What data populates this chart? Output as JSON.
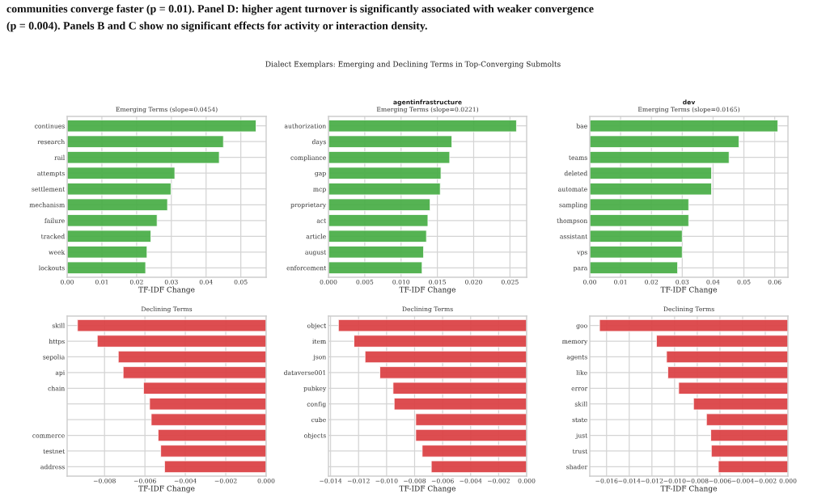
{
  "chart_data": [
    {
      "type": "bar",
      "orientation": "horizontal",
      "subtitle": "Emerging Terms (slope=0.0454)",
      "xlabel": "TF-IDF Change",
      "annotations": [
        "communities converge faster (p = 0.01). Panel D: higher agent turnover is significantly associated with weaker convergence",
        "(p = 0.004). Panels B and C show no significant effects for activity or interaction density.",
        "Dialect Exemplars: Emerging and Declining Terms in Top-Converging Submolts"
      ],
      "categories": [
        "continues",
        "research",
        "rail",
        "attempts",
        "settlement",
        "mechanism",
        "failure",
        "tracked",
        "week",
        "lockouts"
      ],
      "values": [
        0.0544,
        0.045,
        0.0438,
        0.031,
        0.0299,
        0.0289,
        0.0259,
        0.0241,
        0.023,
        0.0226
      ],
      "color": "#4caf4a",
      "xlim": [
        0,
        0.0573
      ],
      "xticks": [
        {
          "value": 0,
          "label": "0.00"
        },
        0.01,
        0.02,
        0.03,
        0.04,
        0.05
      ],
      "grid": true
    },
    {
      "type": "bar",
      "orientation": "horizontal",
      "title": "agentinfrastructure",
      "subtitle": "Emerging Terms (slope=0.0221)",
      "xlabel": "TF-IDF Change",
      "categories": [
        "authorization",
        "days",
        "compliance",
        "gap",
        "mcp",
        "proprietary",
        "act",
        "article",
        "august",
        "enforcement"
      ],
      "values": [
        0.0259,
        0.017,
        0.0167,
        0.0155,
        0.0154,
        0.014,
        0.0137,
        0.0135,
        0.0131,
        0.0129
      ],
      "color": "#4caf4a",
      "xlim": [
        0,
        0.0273
      ],
      "xticks": [
        {
          "value": 0,
          "label": "0.000"
        },
        0.005,
        {
          "value": 0.01,
          "label": "0.010"
        },
        0.015,
        {
          "value": 0.02,
          "label": "0.020"
        },
        0.025
      ],
      "grid": true
    },
    {
      "type": "bar",
      "orientation": "horizontal",
      "title": "dev",
      "subtitle": "Emerging Terms (slope=0.0165)",
      "xlabel": "TF-IDF Change",
      "categories": [
        "bae",
        null,
        "teams",
        "deleted",
        "automate",
        "sampling",
        "thompson",
        "assistant",
        "vps",
        "para"
      ],
      "values": [
        0.061,
        0.0484,
        0.0452,
        0.0395,
        0.0395,
        0.0321,
        0.0321,
        0.03,
        0.03,
        0.0285
      ],
      "color": "#4caf4a",
      "xlim": [
        0,
        0.0643
      ],
      "xticks": [
        {
          "value": 0,
          "label": "0.00"
        },
        0.01,
        0.02,
        0.03,
        0.04,
        0.05,
        0.06
      ],
      "grid": true
    },
    {
      "type": "bar",
      "orientation": "horizontal",
      "title": "Declining Terms",
      "xlabel": "TF-IDF Change",
      "categories": [
        "skill",
        "https",
        "sepolia",
        "api",
        "chain",
        null,
        null,
        "commerce",
        "testnet",
        "address"
      ],
      "values": [
        -0.00934,
        -0.00836,
        -0.00732,
        -0.00708,
        -0.00607,
        -0.00577,
        -0.00569,
        -0.00535,
        -0.00522,
        -0.00503
      ],
      "color": "#dc4447",
      "xlim": [
        -0.00985,
        0
      ],
      "xticks": [
        {
          "value": -0.008,
          "label": "−0.008"
        },
        {
          "value": -0.006,
          "label": "−0.006"
        },
        {
          "value": -0.004,
          "label": "−0.004"
        },
        {
          "value": -0.002,
          "label": "−0.002"
        },
        {
          "value": 0,
          "label": "0.000"
        }
      ],
      "grid": true
    },
    {
      "type": "bar",
      "orientation": "horizontal",
      "title": "Declining Terms",
      "xlabel": "TF-IDF Change",
      "categories": [
        "object",
        "item",
        "json",
        "dataverse001",
        "pubkey",
        "config",
        "cube",
        "objects",
        null,
        null
      ],
      "values": [
        -0.01344,
        -0.01233,
        -0.01154,
        -0.01048,
        -0.00954,
        -0.00946,
        -0.00792,
        -0.00792,
        -0.00746,
        -0.00681
      ],
      "color": "#dc4447",
      "xlim": [
        -0.01415,
        0
      ],
      "xticks": [
        {
          "value": -0.014,
          "label": "−0.014"
        },
        {
          "value": -0.012,
          "label": "−0.012"
        },
        {
          "value": -0.01,
          "label": "−0.010"
        },
        {
          "value": -0.008,
          "label": "−0.008"
        },
        {
          "value": -0.006,
          "label": "−0.006"
        },
        {
          "value": -0.004,
          "label": "−0.004"
        },
        {
          "value": -0.002,
          "label": "−0.002"
        },
        {
          "value": 0,
          "label": "0.000"
        }
      ],
      "grid": true
    },
    {
      "type": "bar",
      "orientation": "horizontal",
      "title": "Declining Terms",
      "xlabel": "TF-IDF Change",
      "categories": [
        "goo",
        "memory",
        "agents",
        "like",
        "error",
        "skill",
        "state",
        "just",
        "trust",
        "shader"
      ],
      "values": [
        -0.01662,
        -0.0116,
        -0.01071,
        -0.0106,
        -0.00964,
        -0.00833,
        -0.00719,
        -0.00681,
        -0.00676,
        -0.00614
      ],
      "color": "#dc4447",
      "xlim": [
        -0.01748,
        0
      ],
      "xticks": [
        {
          "value": -0.016,
          "label": "−0.016"
        },
        {
          "value": -0.014,
          "label": "−0.014"
        },
        {
          "value": -0.012,
          "label": "−0.012"
        },
        {
          "value": -0.01,
          "label": "−0.010"
        },
        {
          "value": -0.008,
          "label": "−0.008"
        },
        {
          "value": -0.006,
          "label": "−0.006"
        },
        {
          "value": -0.004,
          "label": "−0.004"
        },
        {
          "value": -0.002,
          "label": "−0.002"
        },
        {
          "value": 0,
          "label": "0.000"
        }
      ],
      "grid": true
    }
  ]
}
